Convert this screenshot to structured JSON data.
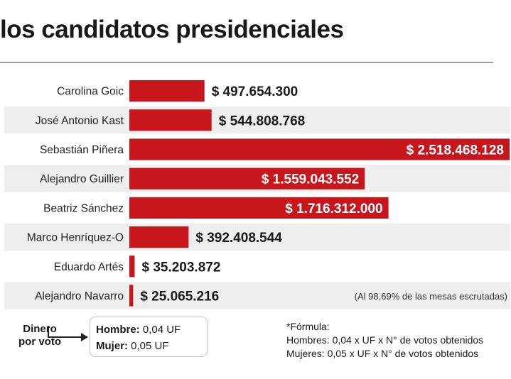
{
  "chart_data": {
    "type": "bar",
    "orientation": "horizontal",
    "title": "los candidatos presidenciales",
    "categories": [
      "Carolina Goic",
      "José Antonio Kast",
      "Sebastián Piñera",
      "Alejandro Guillier",
      "Beatriz Sánchez",
      "Marco Henríquez-O",
      "Eduardo Artés",
      "Alejandro Navarro"
    ],
    "values": [
      497654300,
      544808768,
      2518468128,
      1559043552,
      1716312000,
      392408544,
      35203872,
      25065216
    ],
    "value_labels": [
      "$ 497.654.300",
      "$ 544.808.768",
      "$ 2.518.468.128",
      "$ 1.559.043.552",
      "$ 1.716.312.000",
      "$ 392.408.544",
      "$ 35.203.872",
      "$ 25.065.216"
    ],
    "xlim": [
      0,
      2518468128
    ],
    "annotation": "(Al 98,69% de las mesas escrutadas)",
    "bar_color": "#c8161d",
    "row_shade_color": "#eeeeee"
  },
  "legend": {
    "label": "Dinero\npor voto",
    "rates": [
      {
        "key": "Hombre:",
        "value": "0,04 UF"
      },
      {
        "key": "Mujer:",
        "value": "0,05 UF"
      }
    ],
    "formula_lines": [
      "*Fórmula:",
      "Hombres: 0,04 x UF x N° de votos obtenidos",
      "Mujeres: 0,05 x UF x N° de votos obtenidos"
    ]
  }
}
